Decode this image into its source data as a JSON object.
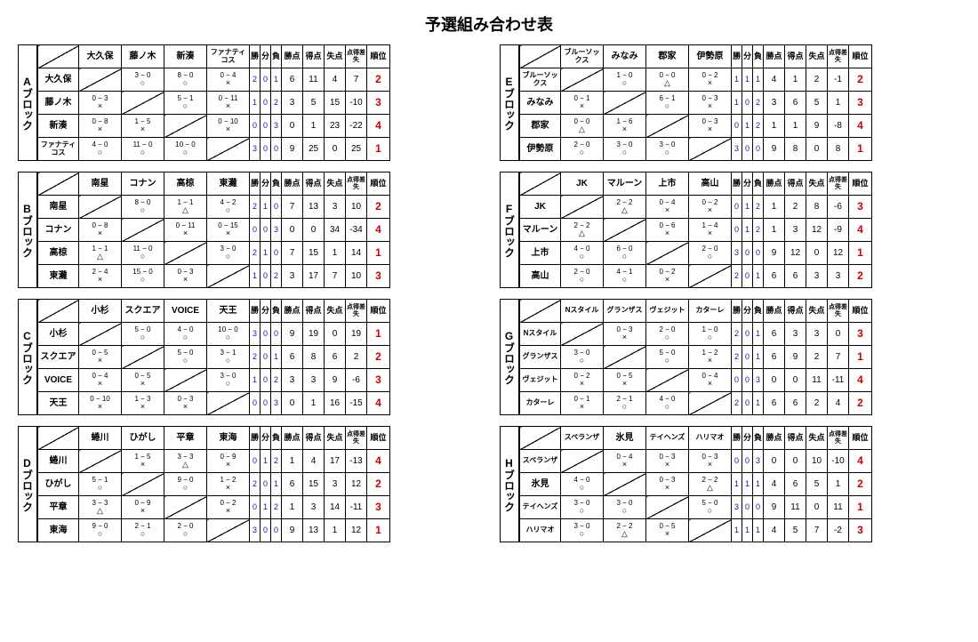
{
  "title": "予選組み合わせ表",
  "stat_headers": [
    "勝",
    "分",
    "負",
    "勝点",
    "得点",
    "失点",
    "点得差失",
    "順位"
  ],
  "col_widths": {
    "row_label": 46,
    "vs": 48,
    "wdl": 12,
    "stat": 24,
    "rank": 26
  },
  "blocks": [
    {
      "id": "A",
      "label": "Aブロック",
      "teams": [
        "大久保",
        "藤ノ木",
        "新湊",
        "ファナティコス"
      ],
      "small_team_idx": [
        3
      ],
      "cells": [
        [
          null,
          {
            "s": "3 − 0",
            "m": "○"
          },
          {
            "s": "8 − 0",
            "m": "○"
          },
          {
            "s": "0 − 4",
            "m": "×"
          }
        ],
        [
          {
            "s": "0 − 3",
            "m": "×"
          },
          null,
          {
            "s": "5 − 1",
            "m": "○"
          },
          {
            "s": "0 − 11",
            "m": "×"
          }
        ],
        [
          {
            "s": "0 − 8",
            "m": "×"
          },
          {
            "s": "1 − 5",
            "m": "×"
          },
          null,
          {
            "s": "0 − 10",
            "m": "×"
          }
        ],
        [
          {
            "s": "4 − 0",
            "m": "○"
          },
          {
            "s": "11 − 0",
            "m": "○"
          },
          {
            "s": "10 − 0",
            "m": "○"
          },
          null
        ]
      ],
      "stats": [
        {
          "w": 2,
          "d": 0,
          "l": 1,
          "pts": 6,
          "gf": 11,
          "ga": 4,
          "gd": 7,
          "rank": 2
        },
        {
          "w": 1,
          "d": 0,
          "l": 2,
          "pts": 3,
          "gf": 5,
          "ga": 15,
          "gd": -10,
          "rank": 3
        },
        {
          "w": 0,
          "d": 0,
          "l": 3,
          "pts": 0,
          "gf": 1,
          "ga": 23,
          "gd": -22,
          "rank": 4
        },
        {
          "w": 3,
          "d": 0,
          "l": 0,
          "pts": 9,
          "gf": 25,
          "ga": 0,
          "gd": 25,
          "rank": 1
        }
      ]
    },
    {
      "id": "E",
      "label": "Eブロック",
      "teams": [
        "ブルーソックス",
        "みなみ",
        "郡家",
        "伊勢原"
      ],
      "small_team_idx": [
        0
      ],
      "cells": [
        [
          null,
          {
            "s": "1 − 0",
            "m": "○"
          },
          {
            "s": "0 − 0",
            "m": "△"
          },
          {
            "s": "0 − 2",
            "m": "×"
          }
        ],
        [
          {
            "s": "0 − 1",
            "m": "×"
          },
          null,
          {
            "s": "6 − 1",
            "m": "○"
          },
          {
            "s": "0 − 3",
            "m": "×"
          }
        ],
        [
          {
            "s": "0 − 0",
            "m": "△"
          },
          {
            "s": "1 − 6",
            "m": "×"
          },
          null,
          {
            "s": "0 − 3",
            "m": "×"
          }
        ],
        [
          {
            "s": "2 − 0",
            "m": "○"
          },
          {
            "s": "3 − 0",
            "m": "○"
          },
          {
            "s": "3 − 0",
            "m": "○"
          },
          null
        ]
      ],
      "stats": [
        {
          "w": 1,
          "d": 1,
          "l": 1,
          "pts": 4,
          "gf": 1,
          "ga": 2,
          "gd": -1,
          "rank": 2
        },
        {
          "w": 1,
          "d": 0,
          "l": 2,
          "pts": 3,
          "gf": 6,
          "ga": 5,
          "gd": 1,
          "rank": 3
        },
        {
          "w": 0,
          "d": 1,
          "l": 2,
          "pts": 1,
          "gf": 1,
          "ga": 9,
          "gd": -8,
          "rank": 4
        },
        {
          "w": 3,
          "d": 0,
          "l": 0,
          "pts": 9,
          "gf": 8,
          "ga": 0,
          "gd": 8,
          "rank": 1
        }
      ]
    },
    {
      "id": "B",
      "label": "Bブロック",
      "teams": [
        "南星",
        "コナン",
        "高椋",
        "東灘"
      ],
      "cells": [
        [
          null,
          {
            "s": "8 − 0",
            "m": "○"
          },
          {
            "s": "1 − 1",
            "m": "△"
          },
          {
            "s": "4 − 2",
            "m": "○"
          }
        ],
        [
          {
            "s": "0 − 8",
            "m": "×"
          },
          null,
          {
            "s": "0 − 11",
            "m": "×"
          },
          {
            "s": "0 − 15",
            "m": "×"
          }
        ],
        [
          {
            "s": "1 − 1",
            "m": "△"
          },
          {
            "s": "11 − 0",
            "m": "○"
          },
          null,
          {
            "s": "3 − 0",
            "m": "○"
          }
        ],
        [
          {
            "s": "2 − 4",
            "m": "×"
          },
          {
            "s": "15 − 0",
            "m": "○"
          },
          {
            "s": "0 − 3",
            "m": "×"
          },
          null
        ]
      ],
      "stats": [
        {
          "w": 2,
          "d": 1,
          "l": 0,
          "pts": 7,
          "gf": 13,
          "ga": 3,
          "gd": 10,
          "rank": 2
        },
        {
          "w": 0,
          "d": 0,
          "l": 3,
          "pts": 0,
          "gf": 0,
          "ga": 34,
          "gd": -34,
          "rank": 4
        },
        {
          "w": 2,
          "d": 1,
          "l": 0,
          "pts": 7,
          "gf": 15,
          "ga": 1,
          "gd": 14,
          "rank": 1
        },
        {
          "w": 1,
          "d": 0,
          "l": 2,
          "pts": 3,
          "gf": 17,
          "ga": 7,
          "gd": 10,
          "rank": 3
        }
      ]
    },
    {
      "id": "F",
      "label": "Fブロック",
      "teams": [
        "JK",
        "マルーン",
        "上市",
        "高山"
      ],
      "cells": [
        [
          null,
          {
            "s": "2 − 2",
            "m": "△"
          },
          {
            "s": "0 − 4",
            "m": "×"
          },
          {
            "s": "0 − 2",
            "m": "×"
          }
        ],
        [
          {
            "s": "2 − 2",
            "m": "△"
          },
          null,
          {
            "s": "0 − 6",
            "m": "×"
          },
          {
            "s": "1 − 4",
            "m": "×"
          }
        ],
        [
          {
            "s": "4 − 0",
            "m": "○"
          },
          {
            "s": "6 − 0",
            "m": "○"
          },
          null,
          {
            "s": "2 − 0",
            "m": "○"
          }
        ],
        [
          {
            "s": "2 − 0",
            "m": "○"
          },
          {
            "s": "4 − 1",
            "m": "○"
          },
          {
            "s": "0 − 2",
            "m": "×"
          },
          null
        ]
      ],
      "stats": [
        {
          "w": 0,
          "d": 1,
          "l": 2,
          "pts": 1,
          "gf": 2,
          "ga": 8,
          "gd": -6,
          "rank": 3
        },
        {
          "w": 0,
          "d": 1,
          "l": 2,
          "pts": 1,
          "gf": 3,
          "ga": 12,
          "gd": -9,
          "rank": 4
        },
        {
          "w": 3,
          "d": 0,
          "l": 0,
          "pts": 9,
          "gf": 12,
          "ga": 0,
          "gd": 12,
          "rank": 1
        },
        {
          "w": 2,
          "d": 0,
          "l": 1,
          "pts": 6,
          "gf": 6,
          "ga": 3,
          "gd": 3,
          "rank": 2
        }
      ]
    },
    {
      "id": "C",
      "label": "Cブロック",
      "teams": [
        "小杉",
        "スクエア",
        "VOICE",
        "天王"
      ],
      "cells": [
        [
          null,
          {
            "s": "5 − 0",
            "m": "○"
          },
          {
            "s": "4 − 0",
            "m": "○"
          },
          {
            "s": "10 − 0",
            "m": "○"
          }
        ],
        [
          {
            "s": "0 − 5",
            "m": "×"
          },
          null,
          {
            "s": "5 − 0",
            "m": "○"
          },
          {
            "s": "3 − 1",
            "m": "○"
          }
        ],
        [
          {
            "s": "0 − 4",
            "m": "×"
          },
          {
            "s": "0 − 5",
            "m": "×"
          },
          null,
          {
            "s": "3 − 0",
            "m": "○"
          }
        ],
        [
          {
            "s": "0 − 10",
            "m": "×"
          },
          {
            "s": "1 − 3",
            "m": "×"
          },
          {
            "s": "0 − 3",
            "m": "×"
          },
          null
        ]
      ],
      "stats": [
        {
          "w": 3,
          "d": 0,
          "l": 0,
          "pts": 9,
          "gf": 19,
          "ga": 0,
          "gd": 19,
          "rank": 1
        },
        {
          "w": 2,
          "d": 0,
          "l": 1,
          "pts": 6,
          "gf": 8,
          "ga": 6,
          "gd": 2,
          "rank": 2
        },
        {
          "w": 1,
          "d": 0,
          "l": 2,
          "pts": 3,
          "gf": 3,
          "ga": 9,
          "gd": -6,
          "rank": 3
        },
        {
          "w": 0,
          "d": 0,
          "l": 3,
          "pts": 0,
          "gf": 1,
          "ga": 16,
          "gd": -15,
          "rank": 4
        }
      ]
    },
    {
      "id": "G",
      "label": "Gブロック",
      "teams": [
        "Nスタイル",
        "グランザス",
        "ヴェジット",
        "カターレ"
      ],
      "small_team_idx": [
        0,
        1,
        2,
        3
      ],
      "cells": [
        [
          null,
          {
            "s": "0 − 3",
            "m": "×"
          },
          {
            "s": "2 − 0",
            "m": "○"
          },
          {
            "s": "1 − 0",
            "m": "○"
          }
        ],
        [
          {
            "s": "3 − 0",
            "m": "○"
          },
          null,
          {
            "s": "5 − 0",
            "m": "○"
          },
          {
            "s": "1 − 2",
            "m": "×"
          }
        ],
        [
          {
            "s": "0 − 2",
            "m": "×"
          },
          {
            "s": "0 − 5",
            "m": "×"
          },
          null,
          {
            "s": "0 − 4",
            "m": "×"
          }
        ],
        [
          {
            "s": "0 − 1",
            "m": "×"
          },
          {
            "s": "2 − 1",
            "m": "○"
          },
          {
            "s": "4 − 0",
            "m": "○"
          },
          null
        ]
      ],
      "stats": [
        {
          "w": 2,
          "d": 0,
          "l": 1,
          "pts": 6,
          "gf": 3,
          "ga": 3,
          "gd": 0,
          "rank": 3
        },
        {
          "w": 2,
          "d": 0,
          "l": 1,
          "pts": 6,
          "gf": 9,
          "ga": 2,
          "gd": 7,
          "rank": 1
        },
        {
          "w": 0,
          "d": 0,
          "l": 3,
          "pts": 0,
          "gf": 0,
          "ga": 11,
          "gd": -11,
          "rank": 4
        },
        {
          "w": 2,
          "d": 0,
          "l": 1,
          "pts": 6,
          "gf": 6,
          "ga": 2,
          "gd": 4,
          "rank": 2
        }
      ]
    },
    {
      "id": "D",
      "label": "Dブロック",
      "teams": [
        "蜷川",
        "ひがし",
        "平章",
        "東海"
      ],
      "cells": [
        [
          null,
          {
            "s": "1 − 5",
            "m": "×"
          },
          {
            "s": "3 − 3",
            "m": "△"
          },
          {
            "s": "0 − 9",
            "m": "×"
          }
        ],
        [
          {
            "s": "5 − 1",
            "m": "○"
          },
          null,
          {
            "s": "9 − 0",
            "m": "○"
          },
          {
            "s": "1 − 2",
            "m": "×"
          }
        ],
        [
          {
            "s": "3 − 3",
            "m": "△"
          },
          {
            "s": "0 − 9",
            "m": "×"
          },
          null,
          {
            "s": "0 − 2",
            "m": "×"
          }
        ],
        [
          {
            "s": "9 − 0",
            "m": "○"
          },
          {
            "s": "2 − 1",
            "m": "○"
          },
          {
            "s": "2 − 0",
            "m": "○"
          },
          null
        ]
      ],
      "stats": [
        {
          "w": 0,
          "d": 1,
          "l": 2,
          "pts": 1,
          "gf": 4,
          "ga": 17,
          "gd": -13,
          "rank": 4
        },
        {
          "w": 2,
          "d": 0,
          "l": 1,
          "pts": 6,
          "gf": 15,
          "ga": 3,
          "gd": 12,
          "rank": 2
        },
        {
          "w": 0,
          "d": 1,
          "l": 2,
          "pts": 1,
          "gf": 3,
          "ga": 14,
          "gd": -11,
          "rank": 3
        },
        {
          "w": 3,
          "d": 0,
          "l": 0,
          "pts": 9,
          "gf": 13,
          "ga": 1,
          "gd": 12,
          "rank": 1
        }
      ]
    },
    {
      "id": "H",
      "label": "Hブロック",
      "teams": [
        "スペランザ",
        "氷見",
        "テイヘンズ",
        "ハリマオ"
      ],
      "small_team_idx": [
        0,
        2,
        3
      ],
      "cells": [
        [
          null,
          {
            "s": "0 − 4",
            "m": "×"
          },
          {
            "s": "0 − 3",
            "m": "×"
          },
          {
            "s": "0 − 3",
            "m": "×"
          }
        ],
        [
          {
            "s": "4 − 0",
            "m": "○"
          },
          null,
          {
            "s": "0 − 3",
            "m": "×"
          },
          {
            "s": "2 − 2",
            "m": "△"
          }
        ],
        [
          {
            "s": "3 − 0",
            "m": "○"
          },
          {
            "s": "3 − 0",
            "m": "○"
          },
          null,
          {
            "s": "5 − 0",
            "m": "○"
          }
        ],
        [
          {
            "s": "3 − 0",
            "m": "○"
          },
          {
            "s": "2 − 2",
            "m": "△"
          },
          {
            "s": "0 − 5",
            "m": "×"
          },
          null
        ]
      ],
      "stats": [
        {
          "w": 0,
          "d": 0,
          "l": 3,
          "pts": 0,
          "gf": 0,
          "ga": 10,
          "gd": -10,
          "rank": 4
        },
        {
          "w": 1,
          "d": 1,
          "l": 1,
          "pts": 4,
          "gf": 6,
          "ga": 5,
          "gd": 1,
          "rank": 2
        },
        {
          "w": 3,
          "d": 0,
          "l": 0,
          "pts": 9,
          "gf": 11,
          "ga": 0,
          "gd": 11,
          "rank": 1
        },
        {
          "w": 1,
          "d": 1,
          "l": 1,
          "pts": 4,
          "gf": 5,
          "ga": 7,
          "gd": -2,
          "rank": 3
        }
      ]
    }
  ]
}
